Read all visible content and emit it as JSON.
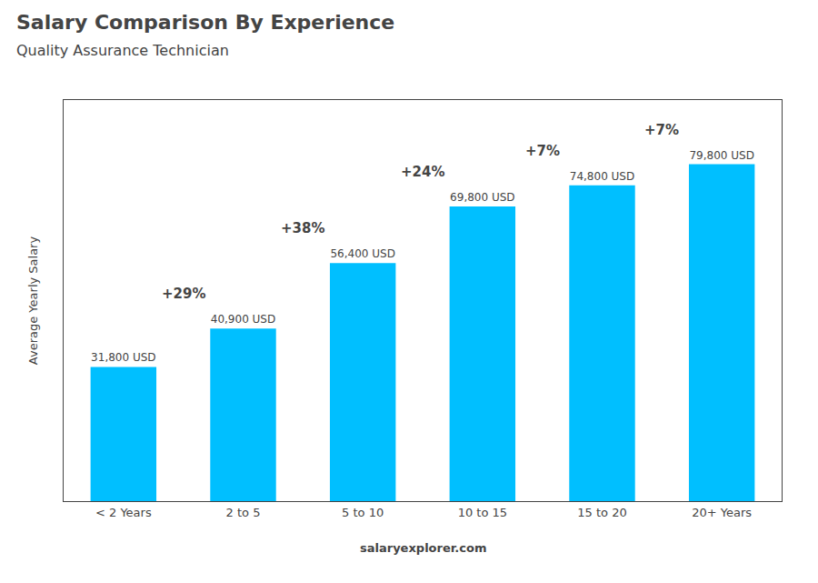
{
  "chart_data": {
    "type": "bar",
    "title": "Salary Comparison By Experience",
    "subtitle": "Quality Assurance Technician",
    "categories": [
      "< 2 Years",
      "2 to 5",
      "5 to 10",
      "10 to 15",
      "15 to 20",
      "20+ Years"
    ],
    "values": [
      31800,
      40900,
      56400,
      69800,
      74800,
      79800
    ],
    "value_labels": [
      "31,800 USD",
      "40,900 USD",
      "56,400 USD",
      "69,800 USD",
      "74,800 USD",
      "79,800 USD"
    ],
    "data_labels": true,
    "annotations": [
      "+29%",
      "+38%",
      "+24%",
      "+7%",
      "+7%"
    ],
    "color": "#00BFFF",
    "ylabel": "Average Yearly Salary",
    "footer": "salaryexplorer.com",
    "ylim": [
      0,
      95000
    ],
    "grid": false,
    "tick_labels": "x"
  }
}
